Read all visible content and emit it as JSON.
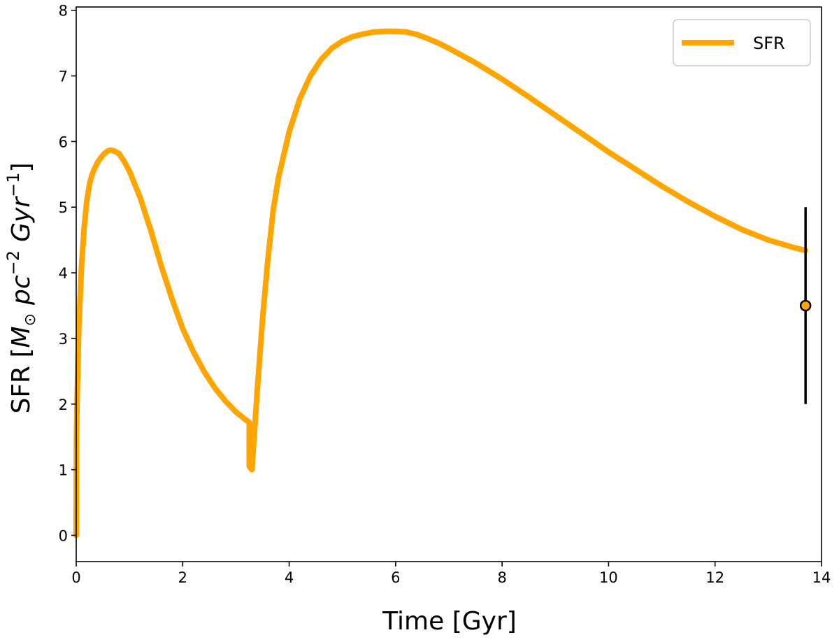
{
  "chart_data": {
    "type": "line",
    "xlabel": "Time [Gyr]",
    "ylabel": {
      "prefix": "SFR [",
      "m": "M",
      "sun": "⊙",
      "pc": "pc",
      "pc_exp": "−2",
      "gyr": "Gyr",
      "gyr_exp": "−1",
      "suffix": "]"
    },
    "xlim": [
      0,
      14
    ],
    "ylim": [
      -0.4,
      8.05
    ],
    "xticks": [
      0,
      2,
      4,
      6,
      8,
      10,
      12,
      14
    ],
    "yticks": [
      0,
      1,
      2,
      3,
      4,
      5,
      6,
      7,
      8
    ],
    "grid": false,
    "legend": {
      "position": "top-right",
      "entries": [
        "SFR"
      ]
    },
    "colors": {
      "line": "#FFA500",
      "errorbar": "#000000",
      "marker_edge": "#000000"
    },
    "series": [
      {
        "name": "SFR",
        "x": [
          0.0,
          0.005,
          0.02,
          0.05,
          0.1,
          0.15,
          0.2,
          0.25,
          0.3,
          0.35,
          0.4,
          0.45,
          0.5,
          0.55,
          0.6,
          0.65,
          0.7,
          0.8,
          0.9,
          1.0,
          1.2,
          1.4,
          1.6,
          1.8,
          2.0,
          2.2,
          2.4,
          2.6,
          2.8,
          3.0,
          3.2,
          3.25,
          3.25,
          3.3,
          3.35,
          3.4,
          3.5,
          3.6,
          3.7,
          3.8,
          4.0,
          4.2,
          4.4,
          4.6,
          4.8,
          5.0,
          5.2,
          5.4,
          5.6,
          5.8,
          6.0,
          6.2,
          6.4,
          6.6,
          6.8,
          7.0,
          7.5,
          8.0,
          8.5,
          9.0,
          9.5,
          10.0,
          10.5,
          11.0,
          11.5,
          12.0,
          12.5,
          13.0,
          13.5,
          13.7
        ],
        "y": [
          0.0,
          1.5,
          2.2,
          3.2,
          4.1,
          4.7,
          5.1,
          5.35,
          5.5,
          5.6,
          5.68,
          5.74,
          5.79,
          5.83,
          5.86,
          5.87,
          5.86,
          5.82,
          5.7,
          5.55,
          5.15,
          4.65,
          4.1,
          3.6,
          3.15,
          2.8,
          2.5,
          2.25,
          2.05,
          1.88,
          1.75,
          1.72,
          1.05,
          1.0,
          1.6,
          2.2,
          3.3,
          4.2,
          4.95,
          5.45,
          6.15,
          6.65,
          7.0,
          7.25,
          7.42,
          7.53,
          7.6,
          7.64,
          7.67,
          7.68,
          7.68,
          7.67,
          7.63,
          7.57,
          7.5,
          7.42,
          7.2,
          6.95,
          6.68,
          6.4,
          6.12,
          5.84,
          5.58,
          5.32,
          5.08,
          4.86,
          4.66,
          4.5,
          4.38,
          4.34
        ]
      }
    ],
    "observation": {
      "x": 13.7,
      "y": 3.5,
      "ylow": 2.0,
      "yhigh": 5.0
    }
  }
}
